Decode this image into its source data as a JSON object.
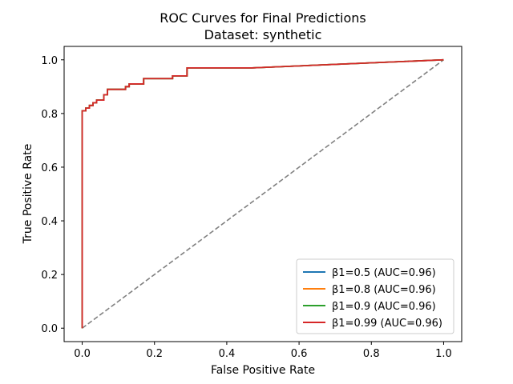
{
  "chart_data": {
    "type": "line",
    "title": "ROC Curves for Final Predictions",
    "subtitle": "Dataset: synthetic",
    "xlabel": "False Positive Rate",
    "ylabel": "True Positive Rate",
    "xlim": [
      -0.05,
      1.05
    ],
    "ylim": [
      -0.05,
      1.05
    ],
    "xticks": [
      "0.0",
      "0.2",
      "0.4",
      "0.6",
      "0.8",
      "1.0"
    ],
    "yticks": [
      "0.0",
      "0.2",
      "0.4",
      "0.6",
      "0.8",
      "1.0"
    ],
    "grid": false,
    "legend_position": "lower-right",
    "series": [
      {
        "name": "β1=0.5 (AUC=0.96)",
        "color": "#1f77b4",
        "points": [
          [
            0,
            0
          ],
          [
            0,
            0.81
          ],
          [
            0.01,
            0.81
          ],
          [
            0.01,
            0.82
          ],
          [
            0.02,
            0.82
          ],
          [
            0.02,
            0.83
          ],
          [
            0.03,
            0.83
          ],
          [
            0.03,
            0.84
          ],
          [
            0.04,
            0.84
          ],
          [
            0.04,
            0.85
          ],
          [
            0.06,
            0.85
          ],
          [
            0.06,
            0.87
          ],
          [
            0.07,
            0.87
          ],
          [
            0.07,
            0.89
          ],
          [
            0.12,
            0.89
          ],
          [
            0.12,
            0.9
          ],
          [
            0.13,
            0.9
          ],
          [
            0.13,
            0.91
          ],
          [
            0.17,
            0.91
          ],
          [
            0.17,
            0.93
          ],
          [
            0.25,
            0.93
          ],
          [
            0.25,
            0.94
          ],
          [
            0.29,
            0.94
          ],
          [
            0.29,
            0.97
          ],
          [
            0.47,
            0.97
          ],
          [
            1.0,
            1.0
          ]
        ]
      },
      {
        "name": "β1=0.8 (AUC=0.96)",
        "color": "#ff7f0e",
        "points": [
          [
            0,
            0
          ],
          [
            0,
            0.81
          ],
          [
            0.01,
            0.81
          ],
          [
            0.01,
            0.82
          ],
          [
            0.02,
            0.82
          ],
          [
            0.02,
            0.83
          ],
          [
            0.03,
            0.83
          ],
          [
            0.03,
            0.84
          ],
          [
            0.04,
            0.84
          ],
          [
            0.04,
            0.85
          ],
          [
            0.06,
            0.85
          ],
          [
            0.06,
            0.87
          ],
          [
            0.07,
            0.87
          ],
          [
            0.07,
            0.89
          ],
          [
            0.12,
            0.89
          ],
          [
            0.12,
            0.9
          ],
          [
            0.13,
            0.9
          ],
          [
            0.13,
            0.91
          ],
          [
            0.17,
            0.91
          ],
          [
            0.17,
            0.93
          ],
          [
            0.25,
            0.93
          ],
          [
            0.25,
            0.94
          ],
          [
            0.29,
            0.94
          ],
          [
            0.29,
            0.97
          ],
          [
            0.47,
            0.97
          ],
          [
            1.0,
            1.0
          ]
        ]
      },
      {
        "name": "β1=0.9 (AUC=0.96)",
        "color": "#2ca02c",
        "points": [
          [
            0,
            0
          ],
          [
            0,
            0.81
          ],
          [
            0.01,
            0.81
          ],
          [
            0.01,
            0.82
          ],
          [
            0.02,
            0.82
          ],
          [
            0.02,
            0.83
          ],
          [
            0.03,
            0.83
          ],
          [
            0.03,
            0.84
          ],
          [
            0.04,
            0.84
          ],
          [
            0.04,
            0.85
          ],
          [
            0.06,
            0.85
          ],
          [
            0.06,
            0.87
          ],
          [
            0.07,
            0.87
          ],
          [
            0.07,
            0.89
          ],
          [
            0.12,
            0.89
          ],
          [
            0.12,
            0.9
          ],
          [
            0.13,
            0.9
          ],
          [
            0.13,
            0.91
          ],
          [
            0.17,
            0.91
          ],
          [
            0.17,
            0.93
          ],
          [
            0.25,
            0.93
          ],
          [
            0.25,
            0.94
          ],
          [
            0.29,
            0.94
          ],
          [
            0.29,
            0.97
          ],
          [
            0.47,
            0.97
          ],
          [
            1.0,
            1.0
          ]
        ]
      },
      {
        "name": "β1=0.99 (AUC=0.96)",
        "color": "#d62728",
        "points": [
          [
            0,
            0
          ],
          [
            0,
            0.81
          ],
          [
            0.01,
            0.81
          ],
          [
            0.01,
            0.82
          ],
          [
            0.02,
            0.82
          ],
          [
            0.02,
            0.83
          ],
          [
            0.03,
            0.83
          ],
          [
            0.03,
            0.84
          ],
          [
            0.04,
            0.84
          ],
          [
            0.04,
            0.85
          ],
          [
            0.06,
            0.85
          ],
          [
            0.06,
            0.87
          ],
          [
            0.07,
            0.87
          ],
          [
            0.07,
            0.89
          ],
          [
            0.12,
            0.89
          ],
          [
            0.12,
            0.9
          ],
          [
            0.13,
            0.9
          ],
          [
            0.13,
            0.91
          ],
          [
            0.17,
            0.91
          ],
          [
            0.17,
            0.93
          ],
          [
            0.25,
            0.93
          ],
          [
            0.25,
            0.94
          ],
          [
            0.29,
            0.94
          ],
          [
            0.29,
            0.97
          ],
          [
            0.47,
            0.97
          ],
          [
            1.0,
            1.0
          ]
        ]
      }
    ],
    "reference_line": {
      "style": "dashed",
      "color": "#808080",
      "points": [
        [
          0,
          0
        ],
        [
          1,
          1
        ]
      ]
    }
  }
}
